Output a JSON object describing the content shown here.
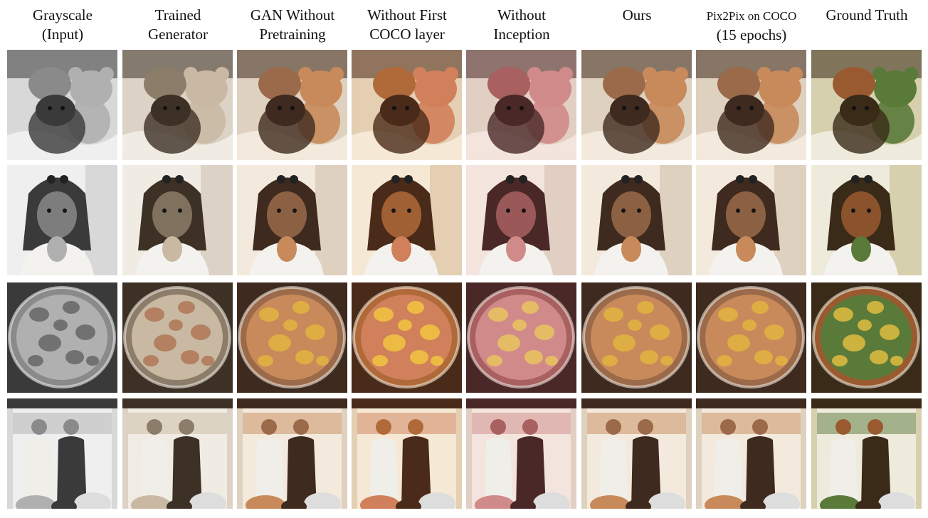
{
  "columns": [
    {
      "line1": "Grayscale",
      "line2": "(Input)",
      "palette": "gray"
    },
    {
      "line1": "Trained",
      "line2": "Generator",
      "palette": "sepia"
    },
    {
      "line1": "GAN Without",
      "line2": "Pretraining",
      "palette": "warm"
    },
    {
      "line1": "Without First",
      "line2": "COCO layer",
      "palette": "orange"
    },
    {
      "line1": "Without",
      "line2": "Inception",
      "palette": "pink"
    },
    {
      "line1": "Ours",
      "line2": "",
      "palette": "warm"
    },
    {
      "line1": "Pix2Pix on COCO",
      "line2": "(15 epochs)",
      "palette": "warm"
    },
    {
      "line1": "Ground Truth",
      "line2": "",
      "palette": "truth"
    }
  ],
  "rows": [
    {
      "subject": "teddy-bears"
    },
    {
      "subject": "girl-eating"
    },
    {
      "subject": "pizza"
    },
    {
      "subject": "outdoor-crowd"
    }
  ],
  "palettes": {
    "gray": {
      "bg": "#d8d8d8",
      "dark": "#3a3a3a",
      "mid": "#8a8a8a",
      "light": "#efefef",
      "accent": "#6a6a6a",
      "accent2": "#b0b0b0"
    },
    "sepia": {
      "bg": "#dcd3c6",
      "dark": "#3d3126",
      "mid": "#8c7d6a",
      "light": "#f1ece3",
      "accent": "#b07a5a",
      "accent2": "#c9b9a3"
    },
    "warm": {
      "bg": "#dfd1bf",
      "dark": "#3e2a1e",
      "mid": "#9a6a4a",
      "light": "#f3eadd",
      "accent": "#e0b040",
      "accent2": "#c88a5a"
    },
    "orange": {
      "bg": "#e4cfb3",
      "dark": "#4a2a18",
      "mid": "#b06a3a",
      "light": "#f5e8d5",
      "accent": "#f0c040",
      "accent2": "#d0805a"
    },
    "pink": {
      "bg": "#e2cfc4",
      "dark": "#4a2828",
      "mid": "#a86060",
      "light": "#f3e4dd",
      "accent": "#e8c060",
      "accent2": "#d08a8a"
    },
    "truth": {
      "bg": "#d6d0ae",
      "dark": "#3a2a18",
      "mid": "#9a5a30",
      "light": "#eeeadc",
      "accent": "#d8b840",
      "accent2": "#5a7a3a"
    }
  }
}
